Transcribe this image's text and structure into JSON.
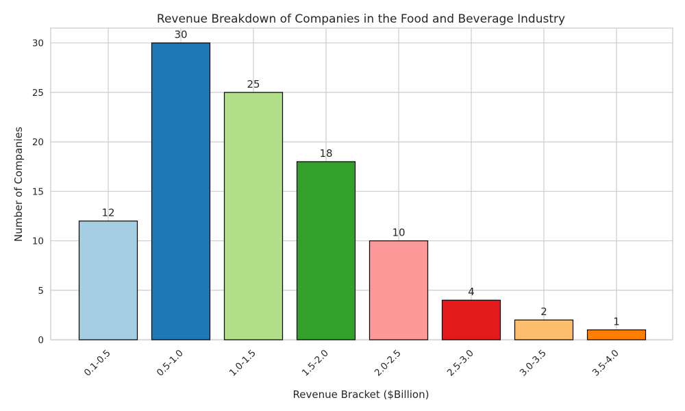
{
  "chart_data": {
    "type": "bar",
    "title": "Revenue Breakdown of Companies in the Food and Beverage Industry",
    "xlabel": "Revenue Bracket ($Billion)",
    "ylabel": "Number of Companies",
    "categories": [
      "0.1-0.5",
      "0.5-1.0",
      "1.0-1.5",
      "1.5-2.0",
      "2.0-2.5",
      "2.5-3.0",
      "3.0-3.5",
      "3.5-4.0"
    ],
    "values": [
      12,
      30,
      25,
      18,
      10,
      4,
      2,
      1
    ],
    "colors": [
      "#a6cee3",
      "#1f78b4",
      "#b2df8a",
      "#33a02c",
      "#fb9a99",
      "#e31a1c",
      "#fdbf6f",
      "#ff7f00"
    ],
    "yticks": [
      0,
      5,
      10,
      15,
      20,
      25,
      30
    ],
    "ylim": [
      0,
      31.5
    ],
    "grid": true,
    "data_labels": [
      "12",
      "30",
      "25",
      "18",
      "10",
      "4",
      "2",
      "1"
    ]
  }
}
